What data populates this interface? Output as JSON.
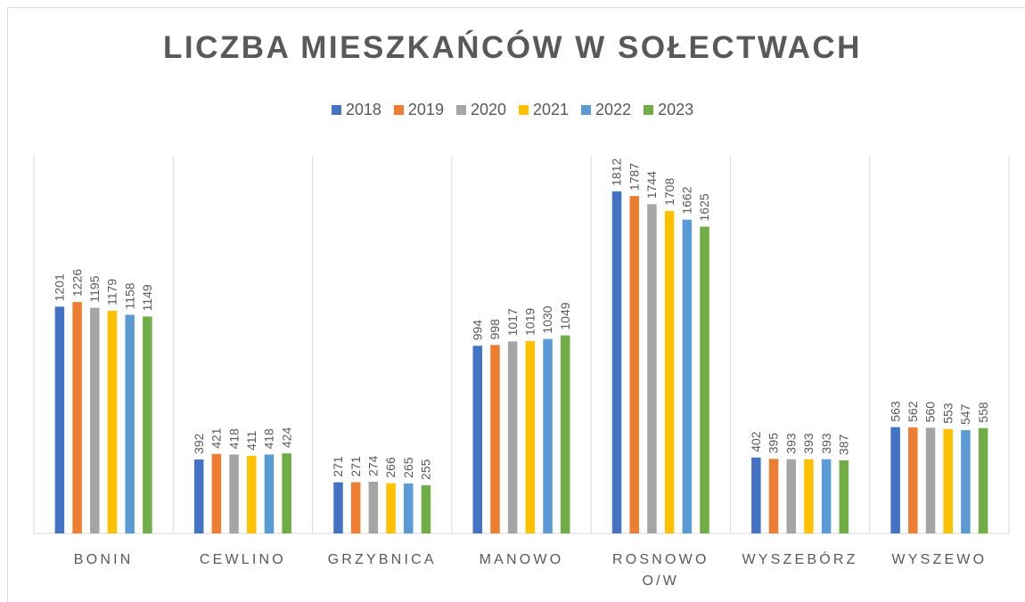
{
  "chart_data": {
    "type": "bar",
    "title": "LICZBA MIESZKAŃCÓW W SOŁECTWACH",
    "categories": [
      "BONIN",
      "CEWLINO",
      "GRZYBNICA",
      "MANOWO",
      "ROSNOWO O/W",
      "WYSZEBÓRZ",
      "WYSZEWO"
    ],
    "series": [
      {
        "name": "2018",
        "color": "#4472c4",
        "values": [
          1201,
          392,
          271,
          994,
          1812,
          402,
          563
        ]
      },
      {
        "name": "2019",
        "color": "#ed7d31",
        "values": [
          1226,
          421,
          271,
          998,
          1787,
          395,
          562
        ]
      },
      {
        "name": "2020",
        "color": "#a5a5a5",
        "values": [
          1195,
          418,
          274,
          1017,
          1744,
          393,
          560
        ]
      },
      {
        "name": "2021",
        "color": "#ffc000",
        "values": [
          1179,
          411,
          266,
          1019,
          1708,
          393,
          553
        ]
      },
      {
        "name": "2022",
        "color": "#5b9bd5",
        "values": [
          1158,
          418,
          265,
          1030,
          1662,
          393,
          547
        ]
      },
      {
        "name": "2023",
        "color": "#70ad47",
        "values": [
          1149,
          424,
          255,
          1049,
          1625,
          387,
          558
        ]
      }
    ],
    "ylim": [
      0,
      2000
    ],
    "legend": "top"
  }
}
